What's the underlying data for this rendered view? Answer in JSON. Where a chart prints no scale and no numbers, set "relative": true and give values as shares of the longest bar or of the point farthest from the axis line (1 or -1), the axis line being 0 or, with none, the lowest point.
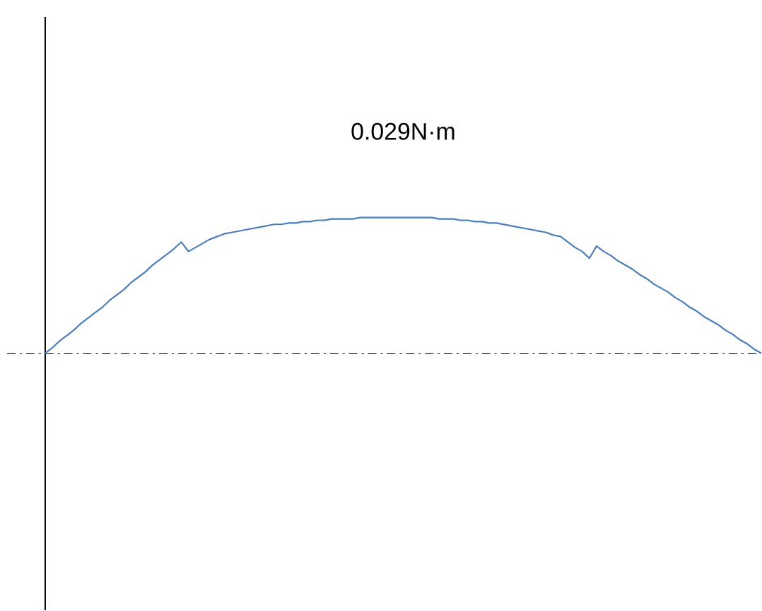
{
  "chart_data": {
    "type": "line",
    "relative": true,
    "annotations": [
      "0.029N·m"
    ],
    "categories": [
      null,
      null,
      null,
      null,
      null,
      null,
      null,
      null,
      null,
      null,
      null,
      null,
      null,
      null,
      null,
      null,
      null,
      null,
      null,
      null,
      null,
      null,
      null,
      null,
      null,
      null,
      null,
      null,
      null,
      null,
      null,
      null,
      null,
      null,
      null,
      null,
      null,
      null,
      null,
      null,
      null,
      null,
      null,
      null,
      null,
      null,
      null,
      null,
      null,
      null,
      null,
      null,
      null,
      null,
      null,
      null,
      null,
      null,
      null,
      null,
      null,
      null,
      null,
      null,
      null,
      null,
      null,
      null,
      null,
      null,
      null,
      null,
      null,
      null,
      null,
      null,
      null,
      null,
      null,
      null,
      null,
      null,
      null,
      null,
      null,
      null,
      null,
      null,
      null,
      null,
      null,
      null,
      null,
      null,
      null,
      null,
      null,
      null,
      null,
      null,
      null
    ],
    "series": [
      {
        "color": "#4a7ebb",
        "values": [
          0,
          0.04,
          0.09,
          0.13,
          0.17,
          0.22,
          0.26,
          0.3,
          0.34,
          0.39,
          0.43,
          0.47,
          0.52,
          0.56,
          0.6,
          0.65,
          0.69,
          0.73,
          0.77,
          0.82,
          0.75,
          0.78,
          0.81,
          0.84,
          0.86,
          0.88,
          0.89,
          0.9,
          0.91,
          0.92,
          0.93,
          0.94,
          0.95,
          0.95,
          0.96,
          0.96,
          0.97,
          0.97,
          0.98,
          0.98,
          0.99,
          0.99,
          0.99,
          0.99,
          1,
          1,
          1,
          1,
          1,
          1,
          1,
          1,
          1,
          1,
          1,
          0.99,
          0.99,
          0.99,
          0.98,
          0.98,
          0.97,
          0.97,
          0.96,
          0.96,
          0.95,
          0.94,
          0.93,
          0.92,
          0.91,
          0.9,
          0.89,
          0.87,
          0.86,
          0.82,
          0.78,
          0.75,
          0.7,
          0.79,
          0.75,
          0.72,
          0.68,
          0.65,
          0.62,
          0.58,
          0.55,
          0.51,
          0.48,
          0.45,
          0.41,
          0.38,
          0.34,
          0.31,
          0.27,
          0.24,
          0.21,
          0.17,
          0.14,
          0.1,
          0.07,
          0.03,
          0
        ]
      }
    ]
  }
}
